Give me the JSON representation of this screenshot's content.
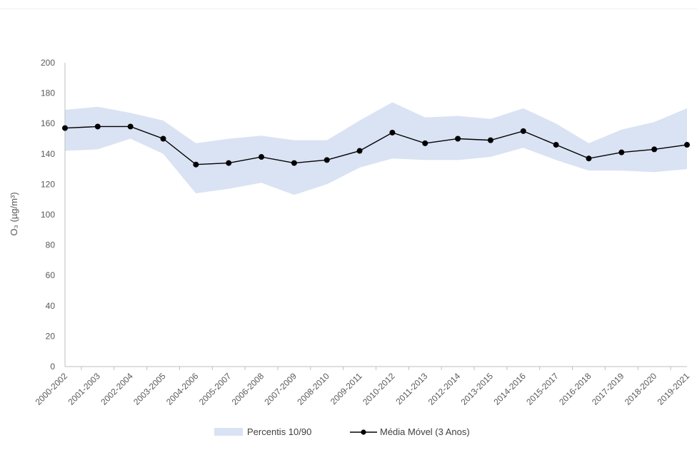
{
  "chart_data": {
    "type": "line",
    "title": "",
    "xlabel": "",
    "ylabel": "O₃ (µg/m³)",
    "ylim": [
      0,
      200
    ],
    "yticks": [
      0,
      20,
      40,
      60,
      80,
      100,
      120,
      140,
      160,
      180,
      200
    ],
    "grid": false,
    "legend_position": "bottom",
    "categories": [
      "2000-2002",
      "2001-2003",
      "2002-2004",
      "2003-2005",
      "2004-2006",
      "2005-2007",
      "2006-2008",
      "2007-2009",
      "2008-2010",
      "2009-2011",
      "2010-2012",
      "2011-2013",
      "2012-2014",
      "2013-2015",
      "2014-2016",
      "2015-2017",
      "2016-2018",
      "2017-2019",
      "2018-2020",
      "2019-2021"
    ],
    "band": {
      "name": "Percentis 10/90",
      "color": "#dae3f3",
      "lower": [
        142,
        143,
        150,
        140,
        114,
        117,
        121,
        113,
        120,
        131,
        137,
        136,
        136,
        138,
        144,
        136,
        129,
        129,
        128,
        130
      ],
      "upper": [
        169,
        171,
        167,
        162,
        147,
        150,
        152,
        149,
        149,
        162,
        174,
        164,
        165,
        163,
        170,
        160,
        147,
        156,
        161,
        170
      ]
    },
    "series": [
      {
        "name": "Média Móvel (3 Anos)",
        "color": "#000000",
        "values": [
          157,
          158,
          158,
          150,
          133,
          134,
          138,
          134,
          136,
          142,
          154,
          147,
          150,
          149,
          155,
          146,
          137,
          141,
          143,
          146
        ]
      }
    ]
  }
}
